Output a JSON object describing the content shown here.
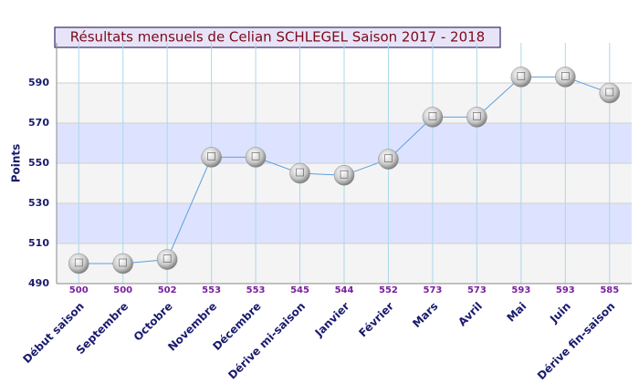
{
  "chart_data": {
    "type": "line",
    "title": "Résultats mensuels de Celian SCHLEGEL Saison 2017 - 2018",
    "y_label": "Points",
    "categories": [
      "Début saison",
      "Septembre",
      "Octobre",
      "Novembre",
      "Décembre",
      "Dérive mi-saison",
      "Janvier",
      "Février",
      "Mars",
      "Avril",
      "Mai",
      "Juin",
      "Dérive fin-saison"
    ],
    "values": [
      500,
      500,
      502,
      553,
      553,
      545,
      544,
      552,
      573,
      573,
      593,
      593,
      585
    ],
    "color": "#5aa0e0",
    "ylim": [
      490,
      610
    ],
    "yticks": [
      490,
      510,
      530,
      550,
      570,
      590
    ],
    "grid": true
  }
}
